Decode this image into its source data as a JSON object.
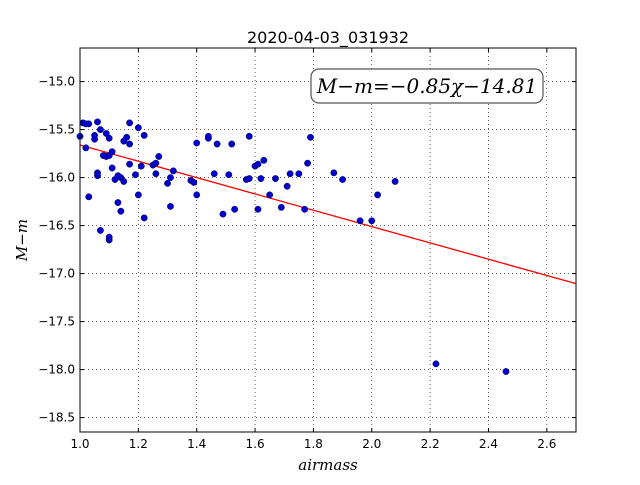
{
  "chart_data": {
    "type": "scatter",
    "title": "2020-04-03_031932",
    "xlabel": "airmass",
    "ylabel": "M−m",
    "xlim": [
      1.0,
      2.7
    ],
    "ylim": [
      -18.65,
      -14.65
    ],
    "y_inverted": true,
    "x_ticks": [
      1.0,
      1.2,
      1.4,
      1.6,
      1.8,
      2.0,
      2.2,
      2.4,
      2.6
    ],
    "x_tick_labels": [
      "1.0",
      "1.2",
      "1.4",
      "1.6",
      "1.8",
      "2.0",
      "2.2",
      "2.4",
      "2.6"
    ],
    "y_ticks": [
      -15.0,
      -15.5,
      -16.0,
      -16.5,
      -17.0,
      -17.5,
      -18.0,
      -18.5
    ],
    "y_tick_labels": [
      "−15.0",
      "−15.5",
      "−16.0",
      "−16.5",
      "−17.0",
      "−17.5",
      "−18.0",
      "−18.5"
    ],
    "grid": true,
    "annotation": {
      "text": "M−m=−0.85χ−14.81",
      "placement": "top-right"
    },
    "fit_line": {
      "slope": -0.85,
      "intercept": -14.81,
      "color": "#ff0000"
    },
    "point_color": "#0000cc",
    "points": [
      [
        1.0,
        -15.57
      ],
      [
        1.01,
        -15.43
      ],
      [
        1.02,
        -15.44
      ],
      [
        1.03,
        -15.44
      ],
      [
        1.02,
        -15.69
      ],
      [
        1.03,
        -16.2
      ],
      [
        1.05,
        -15.6
      ],
      [
        1.05,
        -15.56
      ],
      [
        1.06,
        -15.42
      ],
      [
        1.07,
        -15.5
      ],
      [
        1.06,
        -15.95
      ],
      [
        1.06,
        -15.98
      ],
      [
        1.07,
        -16.55
      ],
      [
        1.08,
        -15.77
      ],
      [
        1.09,
        -15.54
      ],
      [
        1.09,
        -15.78
      ],
      [
        1.1,
        -15.77
      ],
      [
        1.1,
        -15.59
      ],
      [
        1.1,
        -16.65
      ],
      [
        1.1,
        -16.62
      ],
      [
        1.11,
        -15.73
      ],
      [
        1.11,
        -15.9
      ],
      [
        1.12,
        -16.02
      ],
      [
        1.13,
        -15.98
      ],
      [
        1.13,
        -16.26
      ],
      [
        1.14,
        -16.35
      ],
      [
        1.14,
        -16.0
      ],
      [
        1.15,
        -16.04
      ],
      [
        1.15,
        -15.62
      ],
      [
        1.16,
        -15.58
      ],
      [
        1.17,
        -15.86
      ],
      [
        1.17,
        -15.65
      ],
      [
        1.17,
        -15.43
      ],
      [
        1.19,
        -15.97
      ],
      [
        1.2,
        -16.18
      ],
      [
        1.2,
        -15.48
      ],
      [
        1.21,
        -15.88
      ],
      [
        1.22,
        -16.42
      ],
      [
        1.22,
        -15.56
      ],
      [
        1.25,
        -15.87
      ],
      [
        1.26,
        -15.85
      ],
      [
        1.26,
        -15.96
      ],
      [
        1.27,
        -15.78
      ],
      [
        1.3,
        -16.06
      ],
      [
        1.31,
        -16.0
      ],
      [
        1.31,
        -16.3
      ],
      [
        1.32,
        -15.93
      ],
      [
        1.38,
        -16.03
      ],
      [
        1.39,
        -16.05
      ],
      [
        1.4,
        -16.18
      ],
      [
        1.4,
        -15.64
      ],
      [
        1.44,
        -15.59
      ],
      [
        1.44,
        -15.57
      ],
      [
        1.46,
        -15.96
      ],
      [
        1.47,
        -15.65
      ],
      [
        1.49,
        -16.38
      ],
      [
        1.51,
        -15.97
      ],
      [
        1.52,
        -15.65
      ],
      [
        1.53,
        -16.33
      ],
      [
        1.57,
        -16.02
      ],
      [
        1.58,
        -16.01
      ],
      [
        1.58,
        -15.57
      ],
      [
        1.6,
        -15.88
      ],
      [
        1.61,
        -15.86
      ],
      [
        1.61,
        -16.33
      ],
      [
        1.62,
        -16.01
      ],
      [
        1.63,
        -15.82
      ],
      [
        1.65,
        -16.18
      ],
      [
        1.67,
        -16.01
      ],
      [
        1.69,
        -16.31
      ],
      [
        1.71,
        -16.09
      ],
      [
        1.72,
        -15.96
      ],
      [
        1.75,
        -15.96
      ],
      [
        1.77,
        -16.33
      ],
      [
        1.78,
        -15.85
      ],
      [
        1.79,
        -15.58
      ],
      [
        1.87,
        -15.95
      ],
      [
        1.9,
        -16.02
      ],
      [
        1.96,
        -16.45
      ],
      [
        2.0,
        -16.45
      ],
      [
        2.02,
        -16.18
      ],
      [
        2.08,
        -16.04
      ],
      [
        2.22,
        -17.94
      ],
      [
        2.46,
        -18.02
      ]
    ]
  }
}
